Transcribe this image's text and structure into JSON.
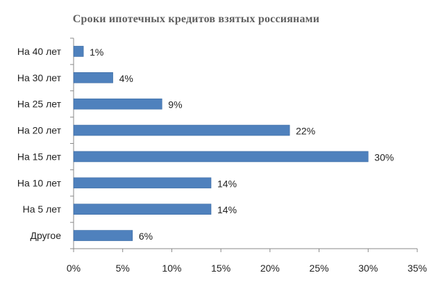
{
  "chart_data": {
    "type": "bar",
    "orientation": "horizontal",
    "title": "Сроки ипотечных кредитов взятых россиянами",
    "categories": [
      "На 40 лет",
      "На 30 лет",
      "На 25 лет",
      "На 20 лет",
      "На 15 лет",
      "На 10 лет",
      "На 5 лет",
      "Другое"
    ],
    "values": [
      1,
      4,
      9,
      22,
      30,
      14,
      14,
      6
    ],
    "value_labels": [
      "1%",
      "4%",
      "9%",
      "22%",
      "30%",
      "14%",
      "14%",
      "6%"
    ],
    "xlim": [
      0,
      35
    ],
    "x_ticks": [
      0,
      5,
      10,
      15,
      20,
      25,
      30,
      35
    ],
    "x_tick_labels": [
      "0%",
      "5%",
      "10%",
      "15%",
      "20%",
      "25%",
      "30%",
      "35%"
    ],
    "grid": false,
    "legend": "none",
    "bar_color": "#4f81bd"
  }
}
